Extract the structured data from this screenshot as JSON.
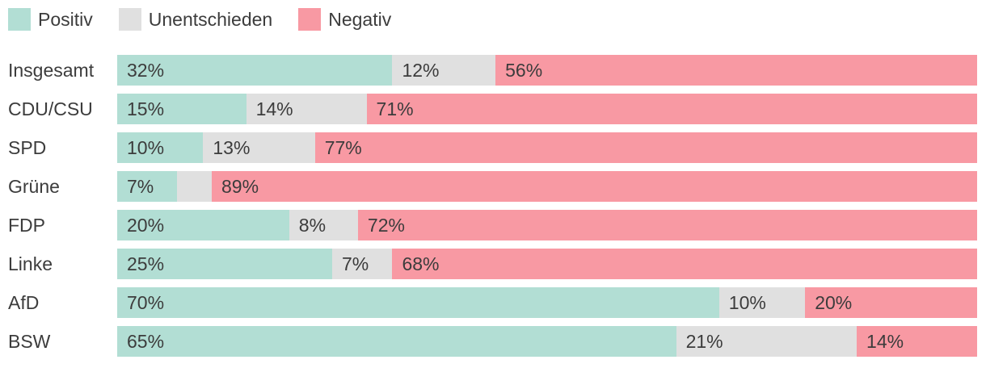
{
  "colors": {
    "positiv": "#b2ded4",
    "unentschieden": "#e0e0e0",
    "negativ": "#f899a3",
    "text": "#3c3c3c",
    "background": "#ffffff"
  },
  "legend": {
    "items": [
      {
        "label": "Positiv",
        "color": "#b2ded4"
      },
      {
        "label": "Unentschieden",
        "color": "#e0e0e0"
      },
      {
        "label": "Negativ",
        "color": "#f899a3"
      }
    ]
  },
  "chart_data": {
    "type": "bar",
    "orientation": "horizontal",
    "stacked": true,
    "title": "",
    "xlabel": "",
    "ylabel": "",
    "xlim": [
      0,
      100
    ],
    "grid": false,
    "legend_position": "top",
    "categories": [
      "Insgesamt",
      "CDU/CSU",
      "SPD",
      "Grüne",
      "FDP",
      "Linke",
      "AfD",
      "BSW"
    ],
    "series": [
      {
        "name": "Positiv",
        "color": "#b2ded4",
        "values": [
          32,
          15,
          10,
          7,
          20,
          25,
          70,
          65
        ]
      },
      {
        "name": "Unentschieden",
        "color": "#e0e0e0",
        "values": [
          12,
          14,
          13,
          4,
          8,
          7,
          10,
          21
        ]
      },
      {
        "name": "Negativ",
        "color": "#f899a3",
        "values": [
          56,
          71,
          77,
          89,
          72,
          68,
          20,
          14
        ]
      }
    ],
    "bar_labels": [
      [
        "32%",
        "12%",
        "56%"
      ],
      [
        "15%",
        "14%",
        "71%"
      ],
      [
        "10%",
        "13%",
        "77%"
      ],
      [
        "7%",
        "",
        "89%"
      ],
      [
        "20%",
        "8%",
        "72%"
      ],
      [
        "25%",
        "7%",
        "68%"
      ],
      [
        "70%",
        "10%",
        "20%"
      ],
      [
        "65%",
        "21%",
        "14%"
      ]
    ]
  }
}
